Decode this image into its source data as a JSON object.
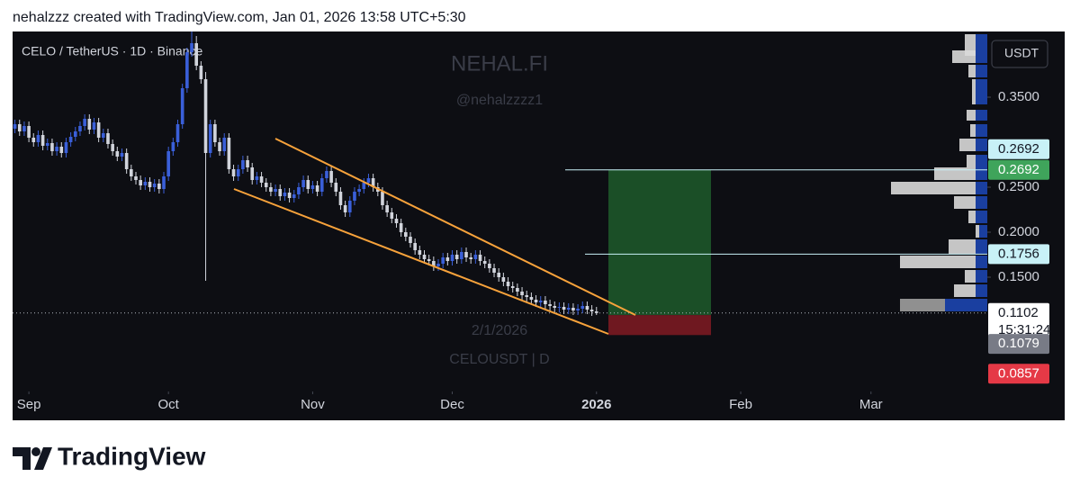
{
  "header": {
    "credit": "nehalzzz created with TradingView.com, Jan 01, 2026 13:58 UTC+5:30"
  },
  "footer": {
    "brand": "TradingView"
  },
  "chart_data": {
    "type": "candlestick",
    "title": "CELO / TetherUS · 1D · Binance",
    "watermark": [
      "NEHAL.FI",
      "@nehalzzzz1",
      "2/1/2026",
      "CELOUSDT | D"
    ],
    "y_axis_label": "USDT",
    "up_color": "#3a5fd9",
    "down_color": "#d1d4dc",
    "ylim": [
      0.023,
      0.423
    ],
    "yticks": [
      {
        "value": 0.35,
        "label": "0.3500"
      },
      {
        "value": 0.25,
        "label": "0.2500"
      },
      {
        "value": 0.2,
        "label": "0.2000"
      },
      {
        "value": 0.15,
        "label": "0.1500"
      }
    ],
    "xlim": [
      -0.5,
      209
    ],
    "xticks": [
      {
        "value": 3,
        "label": "Sep"
      },
      {
        "value": 33,
        "label": "Oct"
      },
      {
        "value": 64,
        "label": "Nov"
      },
      {
        "value": 94,
        "label": "Dec"
      },
      {
        "value": 125,
        "label": "2026"
      },
      {
        "value": 156,
        "label": "Feb"
      },
      {
        "value": 184,
        "label": "Mar"
      }
    ],
    "ohlc": [
      [
        0.315,
        0.325,
        0.31,
        0.32
      ],
      [
        0.32,
        0.325,
        0.307,
        0.312
      ],
      [
        0.312,
        0.323,
        0.307,
        0.318
      ],
      [
        0.318,
        0.323,
        0.3,
        0.305
      ],
      [
        0.305,
        0.31,
        0.295,
        0.3
      ],
      [
        0.3,
        0.313,
        0.295,
        0.308
      ],
      [
        0.308,
        0.313,
        0.291,
        0.296
      ],
      [
        0.296,
        0.304,
        0.291,
        0.299
      ],
      [
        0.299,
        0.304,
        0.285,
        0.29
      ],
      [
        0.29,
        0.3,
        0.285,
        0.295
      ],
      [
        0.295,
        0.3,
        0.283,
        0.288
      ],
      [
        0.288,
        0.305,
        0.283,
        0.3
      ],
      [
        0.3,
        0.311,
        0.295,
        0.306
      ],
      [
        0.306,
        0.317,
        0.301,
        0.312
      ],
      [
        0.312,
        0.323,
        0.307,
        0.318
      ],
      [
        0.318,
        0.331,
        0.313,
        0.326
      ],
      [
        0.326,
        0.331,
        0.309,
        0.314
      ],
      [
        0.314,
        0.327,
        0.309,
        0.322
      ],
      [
        0.322,
        0.327,
        0.3,
        0.305
      ],
      [
        0.305,
        0.315,
        0.3,
        0.31
      ],
      [
        0.31,
        0.315,
        0.293,
        0.298
      ],
      [
        0.298,
        0.303,
        0.285,
        0.29
      ],
      [
        0.29,
        0.295,
        0.279,
        0.284
      ],
      [
        0.284,
        0.293,
        0.279,
        0.288
      ],
      [
        0.288,
        0.293,
        0.265,
        0.27
      ],
      [
        0.27,
        0.275,
        0.257,
        0.262
      ],
      [
        0.262,
        0.267,
        0.253,
        0.258
      ],
      [
        0.258,
        0.263,
        0.247,
        0.252
      ],
      [
        0.252,
        0.261,
        0.247,
        0.256
      ],
      [
        0.256,
        0.261,
        0.245,
        0.25
      ],
      [
        0.25,
        0.259,
        0.245,
        0.254
      ],
      [
        0.254,
        0.259,
        0.243,
        0.248
      ],
      [
        0.248,
        0.267,
        0.243,
        0.262
      ],
      [
        0.262,
        0.295,
        0.257,
        0.29
      ],
      [
        0.29,
        0.305,
        0.285,
        0.3
      ],
      [
        0.3,
        0.325,
        0.295,
        0.32
      ],
      [
        0.32,
        0.365,
        0.315,
        0.36
      ],
      [
        0.36,
        0.405,
        0.355,
        0.4
      ],
      [
        0.4,
        0.423,
        0.395,
        0.41
      ],
      [
        0.41,
        0.418,
        0.38,
        0.385
      ],
      [
        0.385,
        0.39,
        0.365,
        0.37
      ],
      [
        0.37,
        0.378,
        0.146,
        0.288
      ],
      [
        0.288,
        0.325,
        0.283,
        0.32
      ],
      [
        0.32,
        0.325,
        0.295,
        0.3
      ],
      [
        0.3,
        0.305,
        0.285,
        0.29
      ],
      [
        0.29,
        0.31,
        0.285,
        0.305
      ],
      [
        0.305,
        0.31,
        0.265,
        0.27
      ],
      [
        0.27,
        0.275,
        0.257,
        0.262
      ],
      [
        0.262,
        0.275,
        0.257,
        0.27
      ],
      [
        0.27,
        0.285,
        0.265,
        0.28
      ],
      [
        0.28,
        0.285,
        0.267,
        0.272
      ],
      [
        0.272,
        0.277,
        0.253,
        0.258
      ],
      [
        0.258,
        0.267,
        0.253,
        0.262
      ],
      [
        0.262,
        0.267,
        0.25,
        0.255
      ],
      [
        0.255,
        0.26,
        0.245,
        0.25
      ],
      [
        0.25,
        0.255,
        0.24,
        0.245
      ],
      [
        0.245,
        0.253,
        0.24,
        0.248
      ],
      [
        0.248,
        0.253,
        0.235,
        0.24
      ],
      [
        0.24,
        0.249,
        0.235,
        0.244
      ],
      [
        0.244,
        0.249,
        0.233,
        0.238
      ],
      [
        0.238,
        0.247,
        0.233,
        0.242
      ],
      [
        0.242,
        0.255,
        0.237,
        0.25
      ],
      [
        0.25,
        0.263,
        0.245,
        0.258
      ],
      [
        0.258,
        0.263,
        0.243,
        0.248
      ],
      [
        0.248,
        0.257,
        0.243,
        0.252
      ],
      [
        0.252,
        0.257,
        0.24,
        0.245
      ],
      [
        0.245,
        0.265,
        0.24,
        0.26
      ],
      [
        0.26,
        0.273,
        0.255,
        0.268
      ],
      [
        0.268,
        0.273,
        0.25,
        0.255
      ],
      [
        0.255,
        0.26,
        0.24,
        0.245
      ],
      [
        0.245,
        0.25,
        0.225,
        0.23
      ],
      [
        0.23,
        0.235,
        0.217,
        0.222
      ],
      [
        0.222,
        0.24,
        0.217,
        0.235
      ],
      [
        0.235,
        0.25,
        0.23,
        0.245
      ],
      [
        0.245,
        0.253,
        0.24,
        0.248
      ],
      [
        0.248,
        0.26,
        0.243,
        0.255
      ],
      [
        0.255,
        0.265,
        0.25,
        0.26
      ],
      [
        0.26,
        0.265,
        0.245,
        0.25
      ],
      [
        0.25,
        0.255,
        0.24,
        0.245
      ],
      [
        0.245,
        0.25,
        0.225,
        0.23
      ],
      [
        0.23,
        0.235,
        0.217,
        0.222
      ],
      [
        0.222,
        0.227,
        0.21,
        0.215
      ],
      [
        0.215,
        0.22,
        0.205,
        0.21
      ],
      [
        0.21,
        0.215,
        0.195,
        0.2
      ],
      [
        0.2,
        0.205,
        0.19,
        0.195
      ],
      [
        0.195,
        0.2,
        0.183,
        0.188
      ],
      [
        0.188,
        0.193,
        0.175,
        0.18
      ],
      [
        0.18,
        0.185,
        0.17,
        0.175
      ],
      [
        0.175,
        0.18,
        0.165,
        0.17
      ],
      [
        0.17,
        0.175,
        0.163,
        0.168
      ],
      [
        0.168,
        0.173,
        0.157,
        0.162
      ],
      [
        0.162,
        0.17,
        0.157,
        0.165
      ],
      [
        0.165,
        0.177,
        0.16,
        0.172
      ],
      [
        0.172,
        0.177,
        0.163,
        0.168
      ],
      [
        0.168,
        0.18,
        0.163,
        0.175
      ],
      [
        0.175,
        0.18,
        0.165,
        0.17
      ],
      [
        0.17,
        0.183,
        0.165,
        0.178
      ],
      [
        0.178,
        0.183,
        0.167,
        0.172
      ],
      [
        0.172,
        0.177,
        0.165,
        0.17
      ],
      [
        0.17,
        0.18,
        0.165,
        0.175
      ],
      [
        0.175,
        0.18,
        0.163,
        0.168
      ],
      [
        0.168,
        0.173,
        0.16,
        0.165
      ],
      [
        0.165,
        0.17,
        0.155,
        0.16
      ],
      [
        0.16,
        0.165,
        0.15,
        0.155
      ],
      [
        0.155,
        0.16,
        0.145,
        0.15
      ],
      [
        0.15,
        0.155,
        0.14,
        0.145
      ],
      [
        0.145,
        0.15,
        0.135,
        0.14
      ],
      [
        0.14,
        0.145,
        0.133,
        0.138
      ],
      [
        0.138,
        0.143,
        0.129,
        0.134
      ],
      [
        0.134,
        0.139,
        0.125,
        0.13
      ],
      [
        0.13,
        0.135,
        0.123,
        0.128
      ],
      [
        0.128,
        0.133,
        0.12,
        0.125
      ],
      [
        0.125,
        0.13,
        0.117,
        0.122
      ],
      [
        0.122,
        0.129,
        0.117,
        0.124
      ],
      [
        0.124,
        0.129,
        0.115,
        0.12
      ],
      [
        0.12,
        0.125,
        0.113,
        0.118
      ],
      [
        0.118,
        0.123,
        0.111,
        0.116
      ],
      [
        0.116,
        0.122,
        0.111,
        0.117
      ],
      [
        0.117,
        0.122,
        0.109,
        0.114
      ],
      [
        0.114,
        0.121,
        0.109,
        0.116
      ],
      [
        0.116,
        0.121,
        0.108,
        0.113
      ],
      [
        0.113,
        0.12,
        0.108,
        0.115
      ],
      [
        0.115,
        0.123,
        0.11,
        0.118
      ],
      [
        0.118,
        0.123,
        0.109,
        0.114
      ],
      [
        0.114,
        0.119,
        0.107,
        0.112
      ],
      [
        0.112,
        0.117,
        0.108,
        0.1102
      ]
    ],
    "price_labels": [
      {
        "value": 0.2692,
        "label": "0.2692",
        "color": "#c8f1f7"
      },
      {
        "value": 0.2692,
        "label": "0.2692",
        "color": "#3fa45b"
      },
      {
        "value": 0.1756,
        "label": "0.1756",
        "color": "#c8f1f7"
      },
      {
        "value": 0.1102,
        "label": "0.1102",
        "color": "#ffffff",
        "countdown": "15:31:24"
      },
      {
        "value": 0.1079,
        "label": "0.1079",
        "color": "#787b86"
      },
      {
        "value": 0.0857,
        "label": "0.0857",
        "color": "#e53946"
      }
    ]
  }
}
